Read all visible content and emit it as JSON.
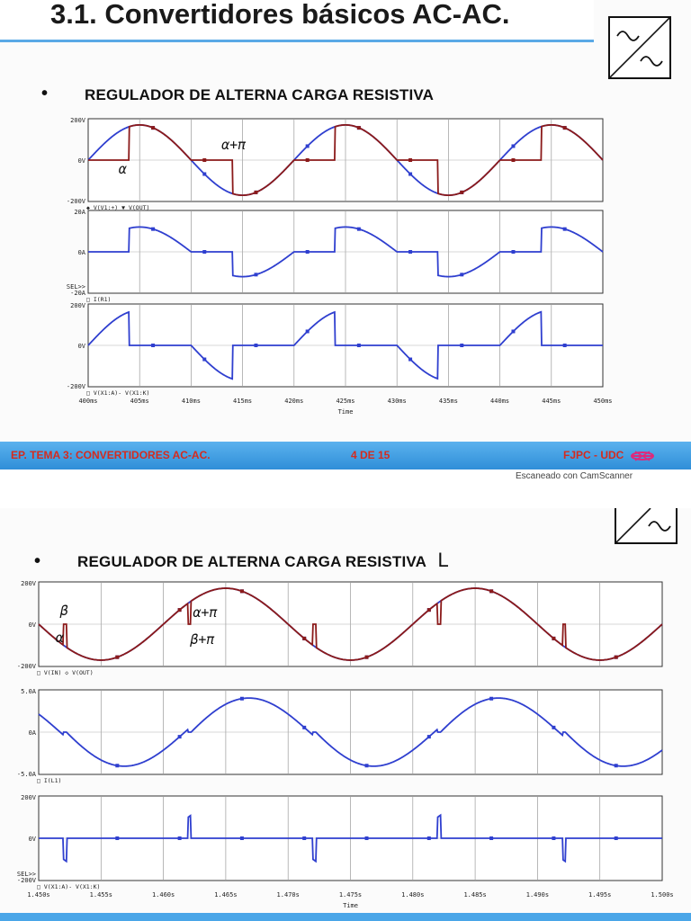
{
  "page1": {
    "title": "3.1. Convertidores básicos AC-AC.",
    "bullet": "•",
    "heading": "REGULADOR DE ALTERNA CARGA RESISTIVA",
    "footer_left": "EP. TEMA 3: CONVERTIDORES AC-AC.",
    "footer_center": "4 DE 15",
    "footer_right": "FJPC - UDC"
  },
  "scan_note": "Escaneado con CamScanner",
  "page2": {
    "bullet": "•",
    "heading": "REGULADOR DE ALTERNA CARGA RESISTIVA",
    "heading_symbol": "L"
  },
  "colors": {
    "v_in": "#2f3fcf",
    "v_out": "#8b1a1a",
    "title_rule": "#5aa9e6",
    "footer": "#3a9be0",
    "footer_text": "#d52b1e"
  },
  "icon": "ac-ac-converter-symbol-icon",
  "chart_data": [
    {
      "type": "line",
      "title": "",
      "xlabel": "Time",
      "x_ticks": [
        "400ms",
        "405ms",
        "410ms",
        "415ms",
        "420ms",
        "425ms",
        "430ms",
        "435ms",
        "440ms",
        "445ms",
        "450ms"
      ],
      "x_range_ms": [
        400,
        450
      ],
      "period_ms": 20,
      "alpha_deg": 72,
      "panels": [
        {
          "ylim": [
            -200,
            200
          ],
          "y_ticks": [
            "200V",
            "0V",
            "-200V"
          ],
          "legend": "◆ V(V1:+)  ▼ V(OUT)",
          "series": [
            {
              "name": "V(V1:+)",
              "signal": "vin",
              "amplitude": 170
            },
            {
              "name": "V(OUT)",
              "signal": "vout_r",
              "amplitude": 170
            }
          ],
          "annotations": [
            "α",
            "α+π"
          ]
        },
        {
          "ylim": [
            -20,
            20
          ],
          "y_ticks": [
            "20A",
            "0A",
            "-20A"
          ],
          "extra_label": "SEL>>",
          "legend": "□ I(R1)",
          "series": [
            {
              "name": "I(R1)",
              "signal": "vout_r",
              "amplitude": 12
            }
          ]
        },
        {
          "ylim": [
            -200,
            200
          ],
          "y_ticks": [
            "200V",
            "0V",
            "-200V"
          ],
          "legend": "□ V(X1:A)- V(X1:K)",
          "series": [
            {
              "name": "V(X1:A)- V(X1:K)",
              "signal": "vak_r",
              "amplitude": 170
            }
          ]
        }
      ]
    },
    {
      "type": "line",
      "title": "",
      "xlabel": "Time",
      "x_ticks": [
        "1.450s",
        "1.455s",
        "1.460s",
        "1.465s",
        "1.470s",
        "1.475s",
        "1.480s",
        "1.485s",
        "1.490s",
        "1.495s",
        "1.500s"
      ],
      "x_range_ms": [
        1450,
        1500
      ],
      "period_ms": 20,
      "alpha_deg": 40,
      "beta_deg": 216,
      "panels": [
        {
          "ylim": [
            -200,
            200
          ],
          "y_ticks": [
            "200V",
            "0V",
            "-200V"
          ],
          "legend": "□ V(IN)  ◇ V(OUT)",
          "series": [
            {
              "name": "V(IN)",
              "signal": "vin",
              "amplitude": 170
            },
            {
              "name": "V(OUT)",
              "signal": "vout_rl",
              "amplitude": 170
            }
          ],
          "annotations": [
            "α",
            "β",
            "α+π",
            "β+π"
          ]
        },
        {
          "ylim": [
            -5,
            5
          ],
          "y_ticks": [
            "5.0A",
            "0A",
            "-5.0A"
          ],
          "legend": "□ I(L1)",
          "series": [
            {
              "name": "I(L1)",
              "signal": "i_rl",
              "amplitude": 4.2
            }
          ]
        },
        {
          "ylim": [
            -200,
            200
          ],
          "y_ticks": [
            "200V",
            "0V",
            "-200V"
          ],
          "extra_label": "SEL>>",
          "legend": "□ V(X1:A)- V(X1:K)",
          "series": [
            {
              "name": "V(X1:A)- V(X1:K)",
              "signal": "vak_rl",
              "amplitude": 170
            }
          ]
        }
      ]
    }
  ]
}
